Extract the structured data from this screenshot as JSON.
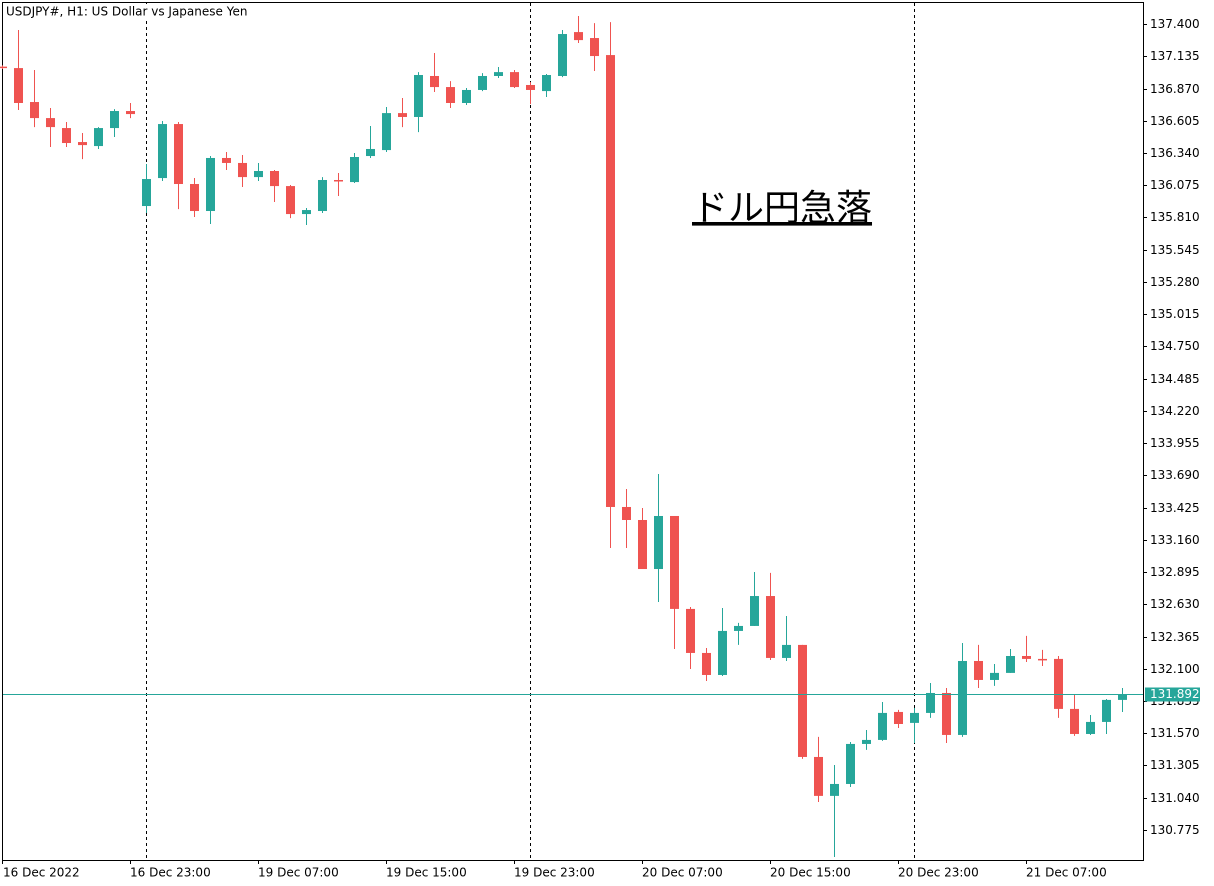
{
  "chart_data": {
    "type": "candlestick",
    "title": "USDJPY#, H1:  US Dollar vs Japanese Yen",
    "annotation": "ドル円急落",
    "up_color": "#26a69a",
    "down_color": "#ef5350",
    "last_price": 131.892,
    "last_price_color": "#26a69a",
    "categories": [
      "16 Dec 2022",
      null,
      null,
      null,
      null,
      null,
      null,
      null,
      "16 Dec 23:00",
      null,
      null,
      null,
      null,
      null,
      null,
      null,
      "19 Dec 07:00",
      null,
      null,
      null,
      null,
      null,
      null,
      null,
      "19 Dec 15:00",
      null,
      null,
      null,
      null,
      null,
      null,
      null,
      "19 Dec 23:00",
      null,
      null,
      null,
      null,
      null,
      null,
      null,
      "20 Dec 07:00",
      null,
      null,
      null,
      null,
      null,
      null,
      null,
      "20 Dec 15:00",
      null,
      null,
      null,
      null,
      null,
      null,
      null,
      "20 Dec 23:00",
      null,
      null,
      null,
      null,
      null,
      null,
      null,
      "21 Dec 07:00",
      null,
      null,
      null,
      null,
      null,
      null
    ],
    "open": [
      137.05,
      137.038,
      136.759,
      136.627,
      136.545,
      136.43,
      136.397,
      136.545,
      136.685,
      135.904,
      136.134,
      136.578,
      136.085,
      135.863,
      136.299,
      136.258,
      136.142,
      136.192,
      136.068,
      135.838,
      135.863,
      136.118,
      136.101,
      136.315,
      136.364,
      136.668,
      136.636,
      136.973,
      136.882,
      136.751,
      136.858,
      136.973,
      137.005,
      136.899,
      136.849,
      136.973,
      137.334,
      137.285,
      137.145,
      133.43,
      133.323,
      132.92,
      133.356,
      132.592,
      132.23,
      132.049,
      132.411,
      132.452,
      132.698,
      132.189,
      132.296,
      131.375,
      131.055,
      131.153,
      131.482,
      131.515,
      131.745,
      131.655,
      131.737,
      131.901,
      131.556,
      132.164,
      132.008,
      132.066,
      132.205,
      132.181,
      132.181,
      131.77,
      131.564,
      131.663,
      131.844
    ],
    "high": [
      137.06,
      137.351,
      137.022,
      136.71,
      136.595,
      136.504,
      136.553,
      136.701,
      136.751,
      136.249,
      136.603,
      136.595,
      136.134,
      136.315,
      136.348,
      136.323,
      136.258,
      136.2,
      136.077,
      135.888,
      136.142,
      136.175,
      136.34,
      136.562,
      136.718,
      136.792,
      137.005,
      137.162,
      136.931,
      136.874,
      136.997,
      137.047,
      137.022,
      136.923,
      136.989,
      137.351,
      137.466,
      137.408,
      137.416,
      133.578,
      133.422,
      133.701,
      133.356,
      132.608,
      132.271,
      132.6,
      132.477,
      132.896,
      132.888,
      132.534,
      132.296,
      131.54,
      131.309,
      131.498,
      131.597,
      131.827,
      131.762,
      131.778,
      131.983,
      131.942,
      132.312,
      132.296,
      132.139,
      132.263,
      132.37,
      132.255,
      132.205,
      131.885,
      131.72,
      131.852,
      131.942
    ],
    "low": [
      137.03,
      136.693,
      136.553,
      136.389,
      136.389,
      136.29,
      136.373,
      136.471,
      136.627,
      135.847,
      136.11,
      135.879,
      135.814,
      135.756,
      136.2,
      136.06,
      136.11,
      135.937,
      135.805,
      135.748,
      135.847,
      135.986,
      136.093,
      136.299,
      136.348,
      136.553,
      136.512,
      136.841,
      136.71,
      136.734,
      136.849,
      136.956,
      136.874,
      136.742,
      136.8,
      136.964,
      137.244,
      137.014,
      133.093,
      133.093,
      132.92,
      132.649,
      132.263,
      132.098,
      131.999,
      132.041,
      132.296,
      132.452,
      132.172,
      132.164,
      131.359,
      131.005,
      130.553,
      131.128,
      131.433,
      131.507,
      131.613,
      131.49,
      131.696,
      131.49,
      131.54,
      131.942,
      131.959,
      132.066,
      132.156,
      132.123,
      131.696,
      131.548,
      131.556,
      131.564,
      131.745
    ],
    "close": [
      137.04,
      136.751,
      136.627,
      136.553,
      136.422,
      136.405,
      136.545,
      136.685,
      136.66,
      136.126,
      136.578,
      136.085,
      135.863,
      136.299,
      136.258,
      136.142,
      136.192,
      136.068,
      135.838,
      135.871,
      136.118,
      136.11,
      136.307,
      136.373,
      136.668,
      136.636,
      136.981,
      136.882,
      136.751,
      136.858,
      136.973,
      137.005,
      136.882,
      136.858,
      136.981,
      137.318,
      137.268,
      137.137,
      133.43,
      133.323,
      132.92,
      133.356,
      132.592,
      132.23,
      132.049,
      132.411,
      132.452,
      132.698,
      132.189,
      132.296,
      131.375,
      131.055,
      131.153,
      131.482,
      131.515,
      131.737,
      131.646,
      131.737,
      131.901,
      131.556,
      132.164,
      132.008,
      132.066,
      132.205,
      132.181,
      132.172,
      131.77,
      131.564,
      131.663,
      131.844,
      131.892
    ],
    "ylim": [
      130.528,
      137.573
    ],
    "yticks": [
      {
        "value": 137.4,
        "label": "137.400"
      },
      137.135,
      {
        "value": 136.87,
        "label": "136.870"
      },
      136.605,
      {
        "value": 136.34,
        "label": "136.340"
      },
      136.075,
      {
        "value": 135.81,
        "label": "135.810"
      },
      135.545,
      {
        "value": 135.28,
        "label": "135.280"
      },
      135.015,
      {
        "value": 134.75,
        "label": "134.750"
      },
      134.485,
      {
        "value": 134.22,
        "label": "134.220"
      },
      133.955,
      {
        "value": 133.69,
        "label": "133.690"
      },
      133.425,
      {
        "value": 133.16,
        "label": "133.160"
      },
      132.895,
      {
        "value": 132.63,
        "label": "132.630"
      },
      132.365,
      {
        "value": 132.1,
        "label": "132.100"
      },
      131.835,
      {
        "value": 131.57,
        "label": "131.570"
      },
      131.305,
      {
        "value": 131.04,
        "label": "131.040"
      },
      130.775
    ]
  }
}
